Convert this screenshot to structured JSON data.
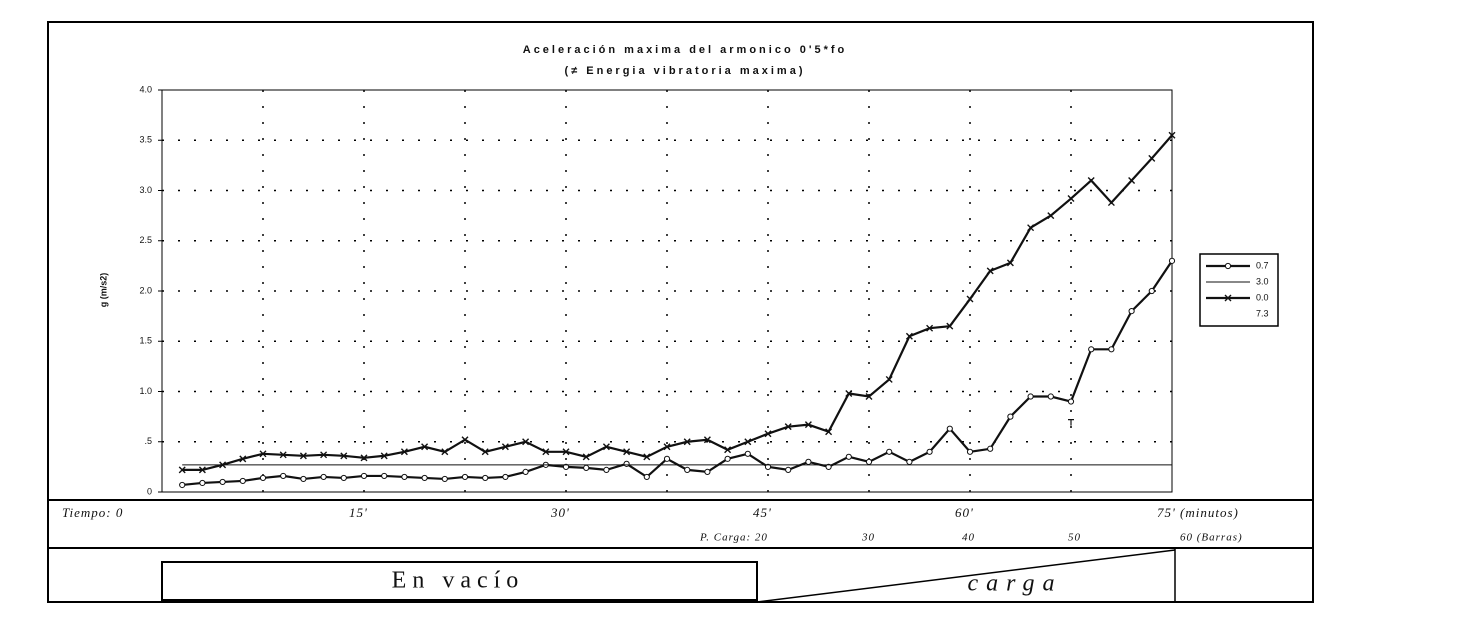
{
  "chart_data": {
    "type": "line",
    "title": "Aceleración maxima del armonico 0'5*fo",
    "subtitle": "(≠ Energia vibratoria maxima)",
    "y_label": "g (m/s2)",
    "x": [
      1.5,
      3,
      4.5,
      6,
      7.5,
      9,
      10.5,
      12,
      13.5,
      15,
      16.5,
      18,
      19.5,
      21,
      22.5,
      24,
      25.5,
      27,
      28.5,
      30,
      31.5,
      33,
      34.5,
      36,
      37.5,
      39,
      40.5,
      42,
      43.5,
      45,
      46.5,
      48,
      49.5,
      51,
      52.5,
      54,
      55.5,
      57,
      58.5,
      60,
      61.5,
      63,
      64.5,
      66,
      67.5,
      69,
      70.5,
      72,
      73.5,
      75
    ],
    "series": [
      {
        "name": "0.7",
        "color": "#111",
        "marker": "circle",
        "values": [
          0.07,
          0.09,
          0.1,
          0.11,
          0.14,
          0.16,
          0.13,
          0.15,
          0.14,
          0.16,
          0.16,
          0.15,
          0.14,
          0.13,
          0.15,
          0.14,
          0.15,
          0.2,
          0.27,
          0.25,
          0.24,
          0.22,
          0.28,
          0.15,
          0.33,
          0.22,
          0.2,
          0.33,
          0.38,
          0.25,
          0.22,
          0.3,
          0.25,
          0.35,
          0.3,
          0.4,
          0.3,
          0.4,
          0.63,
          0.4,
          0.43,
          0.75,
          0.95,
          0.95,
          0.9,
          1.42,
          1.42,
          1.8,
          2.0,
          2.3
        ]
      },
      {
        "name": "3.0",
        "color": "#111",
        "marker": "none",
        "values": [
          0.27,
          0.27,
          0.27,
          0.27,
          0.27,
          0.27,
          0.27,
          0.27,
          0.27,
          0.27,
          0.27,
          0.27,
          0.27,
          0.27,
          0.27,
          0.27,
          0.27,
          0.27,
          0.27,
          0.27,
          0.27,
          0.27,
          0.27,
          0.27,
          0.27,
          0.27,
          0.27,
          0.27,
          0.27,
          0.27,
          0.27,
          0.27,
          0.27,
          0.27,
          0.27,
          0.27,
          0.27,
          0.27,
          0.27,
          0.27,
          0.27,
          0.27,
          0.27,
          0.27,
          0.27,
          0.27,
          0.27,
          0.27,
          0.27,
          0.27
        ]
      },
      {
        "name": "0.0",
        "color": "#111",
        "marker": "cross",
        "values": [
          0.22,
          0.22,
          0.27,
          0.33,
          0.38,
          0.37,
          0.36,
          0.37,
          0.36,
          0.34,
          0.36,
          0.4,
          0.45,
          0.4,
          0.52,
          0.4,
          0.45,
          0.5,
          0.4,
          0.4,
          0.35,
          0.45,
          0.4,
          0.35,
          0.45,
          0.5,
          0.52,
          0.42,
          0.5,
          0.58,
          0.65,
          0.67,
          0.6,
          0.98,
          0.95,
          1.12,
          1.55,
          1.63,
          1.65,
          1.92,
          2.2,
          2.28,
          2.63,
          2.75,
          2.92,
          3.1,
          2.88,
          3.1,
          3.32,
          3.55
        ]
      },
      {
        "name": "7.3",
        "color": "#111",
        "marker": "dash",
        "values": [
          null,
          null,
          null,
          null,
          null,
          null,
          null,
          null,
          null,
          null,
          null,
          null,
          null,
          null,
          null,
          null,
          null,
          null,
          null,
          null,
          null,
          null,
          null,
          null,
          null,
          null,
          null,
          null,
          null,
          null,
          null,
          null,
          null,
          null,
          null,
          null,
          null,
          null,
          null,
          null,
          null,
          null,
          null,
          null,
          0.72,
          null,
          null,
          null,
          null,
          null
        ]
      }
    ],
    "xlim": [
      0,
      75
    ],
    "xticks": [
      {
        "value": 0,
        "label": "Tiempo: 0"
      },
      {
        "value": 15,
        "label": "15'"
      },
      {
        "value": 30,
        "label": "30'"
      },
      {
        "value": 45,
        "label": "45'"
      },
      {
        "value": 60,
        "label": "60'"
      },
      {
        "value": 75,
        "label": "75' (minutos)"
      }
    ],
    "load_labels": [
      "P. Carga: 20",
      "30",
      "40",
      "50",
      "60 (Barras)"
    ],
    "ylim": [
      0,
      4
    ],
    "yticks": [
      0,
      {
        "value": 0.5,
        "label": ".5"
      },
      {
        "value": 1,
        "label": "1.0"
      },
      {
        "value": 1.5,
        "label": "1.5"
      },
      {
        "value": 2,
        "label": "2.0"
      },
      {
        "value": 2.5,
        "label": "2.5"
      },
      {
        "value": 3,
        "label": "3.0"
      },
      {
        "value": 3.5,
        "label": "3.5"
      },
      {
        "value": 4,
        "label": "4.0"
      }
    ],
    "grid": true,
    "legend": "right",
    "phase_labels": [
      "En vacío",
      "carga"
    ]
  }
}
